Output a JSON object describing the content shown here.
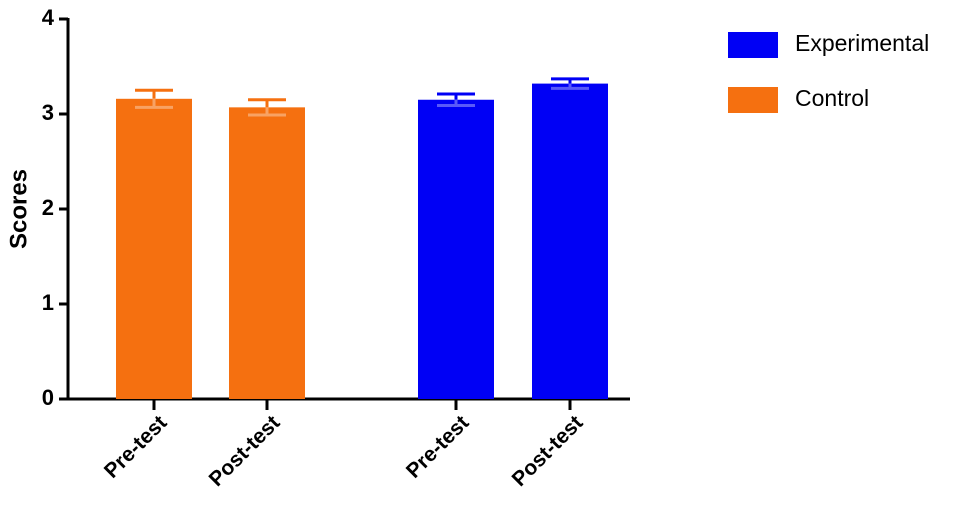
{
  "chart_data": {
    "type": "bar",
    "y_label": "Scores",
    "categories": [
      "Pre-test",
      "Post-test",
      "Pre-test",
      "Post-test"
    ],
    "series": [
      {
        "name": "Experimental",
        "color": "#0000f5",
        "values": [
          null,
          null,
          3.15,
          3.32
        ],
        "errors": [
          null,
          null,
          0.06,
          0.05
        ]
      },
      {
        "name": "Control",
        "color": "#f57010",
        "values": [
          3.16,
          3.07,
          null,
          null
        ],
        "errors": [
          0.09,
          0.08,
          null,
          null
        ]
      }
    ],
    "ylim": [
      0,
      4
    ],
    "yticks": [
      0,
      1,
      2,
      3,
      4
    ]
  }
}
